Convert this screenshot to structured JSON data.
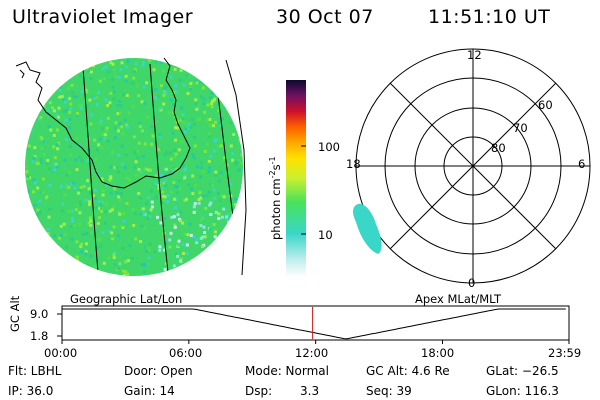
{
  "header": {
    "title": "Ultraviolet Imager",
    "date": "30 Oct 07",
    "time": "11:51:10 UT"
  },
  "colorbar": {
    "label": "photon cm",
    "label_sup1": "-2",
    "label_mid": "s",
    "label_sup2": "-1",
    "ticks": [
      "100",
      "10"
    ]
  },
  "polar_plot": {
    "mlt_labels": {
      "top": "12",
      "left": "18",
      "right": "6",
      "bottom": "0"
    },
    "lat_labels": [
      "60",
      "70",
      "80"
    ]
  },
  "map_labels": {
    "left": "Geographic Lat/Lon",
    "right": "Apex MLat/MLT"
  },
  "timeline": {
    "ylabel": "GC Alt",
    "y_ticks": [
      "9.0",
      "1.8"
    ],
    "x_ticks": [
      "00:00",
      "06:00",
      "12:00",
      "18:00",
      "23:59"
    ],
    "marker_time": "11:51:10",
    "marker_color": "#d02020"
  },
  "info": {
    "flt": "Flt: LBHL",
    "ip": "IP: 36.0",
    "door": "Door: Open",
    "gain": "Gain: 14",
    "mode": "Mode: Normal",
    "dsp_label": "Dsp:",
    "dsp_value": "3.3",
    "gc_alt": "GC Alt: 4.6 Re",
    "seq": "Seq: 39",
    "glat": "GLat: −26.5",
    "glon": "GLon: 116.3"
  }
}
